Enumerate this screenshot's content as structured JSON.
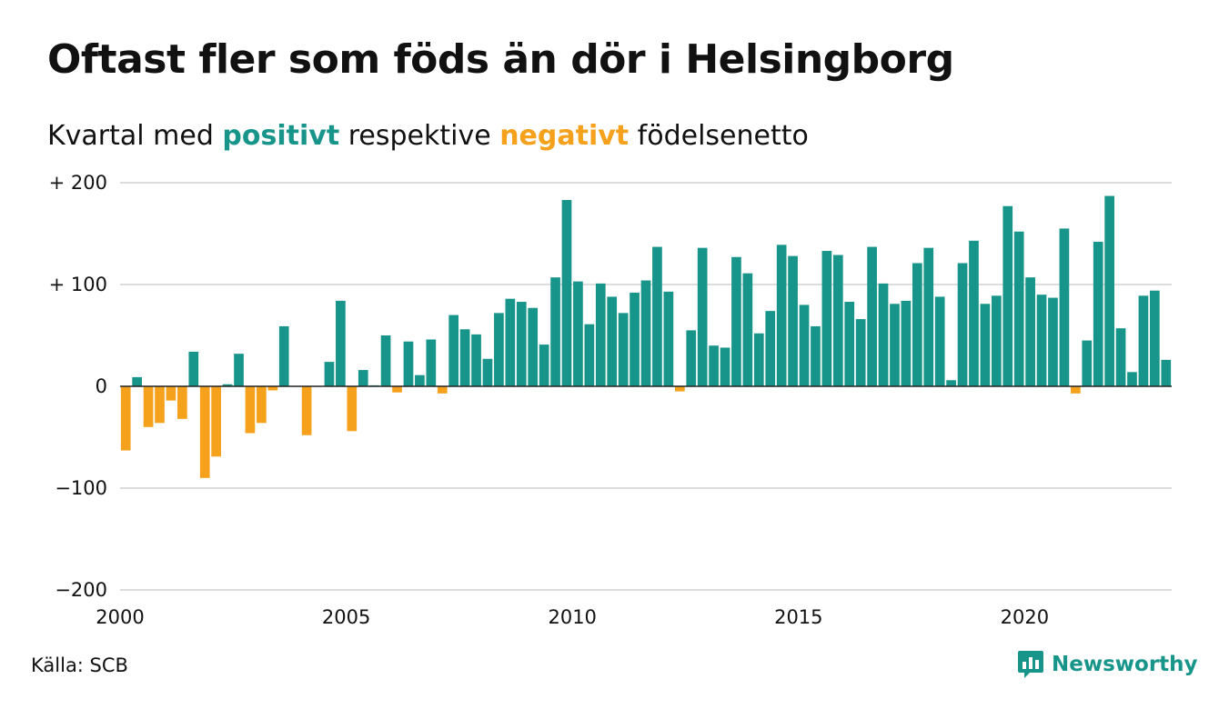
{
  "title": "Oftast fler som föds än dör i Helsingborg",
  "subtitle": {
    "prefix": "Kvartal med ",
    "positive_word": "positivt",
    "middle": " respektive ",
    "negative_word": "negativt",
    "suffix": " födelsenetto"
  },
  "colors": {
    "positive": "#17958a",
    "negative": "#f5a11c",
    "grid": "#dddddd",
    "zero_line": "#222222",
    "text": "#111111",
    "brand": "#17958a"
  },
  "source": "Källa: SCB",
  "brand": {
    "name": "Newsworthy",
    "icon": "newsworthy-logo-icon"
  },
  "chart_data": {
    "type": "bar",
    "title": "Oftast fler som föds än dör i Helsingborg",
    "subtitle": "Kvartal med positivt respektive negativt födelsenetto",
    "xlabel": "",
    "ylabel": "",
    "ylim": [
      -200,
      200
    ],
    "yticks": [
      200,
      100,
      0,
      -100,
      -200
    ],
    "ytick_labels": [
      "+ 200",
      "+ 100",
      "0",
      "−100",
      "−200"
    ],
    "xlim": [
      2000,
      2023.25
    ],
    "xticks": [
      2000,
      2005,
      2010,
      2015,
      2020
    ],
    "xtick_labels": [
      "2000",
      "2005",
      "2010",
      "2015",
      "2020"
    ],
    "grid": true,
    "legend": "none",
    "start_year": 2000,
    "categories": [
      "2000 Q1",
      "2000 Q2",
      "2000 Q3",
      "2000 Q4",
      "2001 Q1",
      "2001 Q2",
      "2001 Q3",
      "2001 Q4",
      "2002 Q1",
      "2002 Q2",
      "2002 Q3",
      "2002 Q4",
      "2003 Q1",
      "2003 Q2",
      "2003 Q3",
      "2003 Q4",
      "2004 Q1",
      "2004 Q2",
      "2004 Q3",
      "2004 Q4",
      "2005 Q1",
      "2005 Q2",
      "2005 Q3",
      "2005 Q4",
      "2006 Q1",
      "2006 Q2",
      "2006 Q3",
      "2006 Q4",
      "2007 Q1",
      "2007 Q2",
      "2007 Q3",
      "2007 Q4",
      "2008 Q1",
      "2008 Q2",
      "2008 Q3",
      "2008 Q4",
      "2009 Q1",
      "2009 Q2",
      "2009 Q3",
      "2009 Q4",
      "2010 Q1",
      "2010 Q2",
      "2010 Q3",
      "2010 Q4",
      "2011 Q1",
      "2011 Q2",
      "2011 Q3",
      "2011 Q4",
      "2012 Q1",
      "2012 Q2",
      "2012 Q3",
      "2012 Q4",
      "2013 Q1",
      "2013 Q2",
      "2013 Q3",
      "2013 Q4",
      "2014 Q1",
      "2014 Q2",
      "2014 Q3",
      "2014 Q4",
      "2015 Q1",
      "2015 Q2",
      "2015 Q3",
      "2015 Q4",
      "2016 Q1",
      "2016 Q2",
      "2016 Q3",
      "2016 Q4",
      "2017 Q1",
      "2017 Q2",
      "2017 Q3",
      "2017 Q4",
      "2018 Q1",
      "2018 Q2",
      "2018 Q3",
      "2018 Q4",
      "2019 Q1",
      "2019 Q2",
      "2019 Q3",
      "2019 Q4",
      "2020 Q1",
      "2020 Q2",
      "2020 Q3",
      "2020 Q4",
      "2021 Q1",
      "2021 Q2",
      "2021 Q3",
      "2021 Q4",
      "2022 Q1",
      "2022 Q2",
      "2022 Q3",
      "2022 Q4",
      "2023 Q1"
    ],
    "values": [
      -63,
      9,
      -40,
      -36,
      -14,
      -32,
      34,
      -90,
      -69,
      2,
      32,
      -46,
      -36,
      -4,
      59,
      0,
      -48,
      0,
      24,
      84,
      -44,
      16,
      1,
      50,
      -6,
      44,
      11,
      46,
      -7,
      70,
      56,
      51,
      27,
      72,
      86,
      83,
      77,
      41,
      107,
      183,
      103,
      61,
      101,
      88,
      72,
      92,
      104,
      137,
      93,
      -5,
      55,
      136,
      40,
      38,
      127,
      111,
      52,
      74,
      139,
      128,
      80,
      59,
      133,
      129,
      83,
      66,
      137,
      101,
      81,
      84,
      121,
      136,
      88,
      6,
      121,
      143,
      81,
      89,
      177,
      152,
      107,
      90,
      87,
      155,
      -7,
      45,
      142,
      187,
      57,
      14,
      89,
      94,
      26
    ]
  }
}
